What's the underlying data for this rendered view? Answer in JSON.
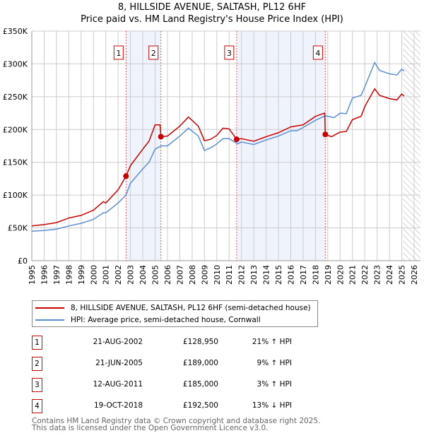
{
  "title_line1": "8, HILLSIDE AVENUE, SALTASH, PL12 6HF",
  "title_line2": "Price paid vs. HM Land Registry's House Price Index (HPI)",
  "chart_data": {
    "type": "line",
    "title": "8, HILLSIDE AVENUE, SALTASH, PL12 6HF — Price paid vs. HM Land Registry's House Price Index (HPI)",
    "xlim": [
      1995,
      2026
    ],
    "ylim": [
      0,
      350000
    ],
    "x_ticks": [
      "1995",
      "1996",
      "1997",
      "1998",
      "1999",
      "2000",
      "2001",
      "2002",
      "2003",
      "2004",
      "2005",
      "2006",
      "2007",
      "2008",
      "2009",
      "2010",
      "2011",
      "2012",
      "2013",
      "2014",
      "2015",
      "2016",
      "2017",
      "2018",
      "2019",
      "2020",
      "2021",
      "2022",
      "2023",
      "2024",
      "2025",
      "2026"
    ],
    "y_ticks": [
      {
        "v": 0,
        "label": "£0"
      },
      {
        "v": 50000,
        "label": "£50K"
      },
      {
        "v": 100000,
        "label": "£100K"
      },
      {
        "v": 150000,
        "label": "£150K"
      },
      {
        "v": 200000,
        "label": "£200K"
      },
      {
        "v": 250000,
        "label": "£250K"
      },
      {
        "v": 300000,
        "label": "£300K"
      },
      {
        "v": 350000,
        "label": "£350K"
      }
    ],
    "grid": true,
    "legend_placement": "below",
    "series": [
      {
        "name": "8, HILLSIDE AVENUE, SALTASH, PL12 6HF (semi-detached house)",
        "color": "#cc0000",
        "x": [
          1995,
          1996,
          1997,
          1998,
          1999,
          2000,
          2000.8,
          2001,
          2002,
          2002.64,
          2003,
          2004,
          2004.5,
          2005,
          2005.4,
          2005.47,
          2006,
          2007,
          2007.7,
          2008.5,
          2009,
          2009.5,
          2010,
          2010.5,
          2011,
          2011.61,
          2012,
          2013,
          2014,
          2015,
          2016,
          2017,
          2018,
          2018.75,
          2018.8,
          2019.3,
          2020,
          2020.5,
          2021,
          2021.7,
          2022,
          2022.8,
          2023.2,
          2024,
          2024.6,
          2025,
          2025.2
        ],
        "y": [
          53000,
          55000,
          58000,
          65000,
          69000,
          77000,
          90000,
          88000,
          108000,
          128950,
          145000,
          170000,
          182000,
          207000,
          207000,
          189000,
          190000,
          205000,
          219000,
          205000,
          183000,
          185000,
          191000,
          202000,
          201000,
          185000,
          186000,
          182000,
          189000,
          195000,
          204000,
          207000,
          220000,
          225000,
          192500,
          189000,
          196000,
          197000,
          215000,
          220000,
          235000,
          262000,
          252000,
          247000,
          245000,
          254000,
          251000
        ]
      },
      {
        "name": "HPI: Average price, semi-detached house, Cornwall",
        "color": "#5b8fd4",
        "x": [
          1995,
          1996,
          1997,
          1998,
          1999,
          2000,
          2000.8,
          2001,
          2002,
          2002.64,
          2003,
          2004,
          2004.5,
          2005,
          2005.5,
          2006,
          2007,
          2007.7,
          2008.5,
          2009,
          2009.5,
          2010,
          2010.5,
          2011,
          2011.7,
          2012,
          2013,
          2014,
          2015,
          2016,
          2016.5,
          2017,
          2018,
          2018.8,
          2019.5,
          2020,
          2020.5,
          2021,
          2021.7,
          2022,
          2022.8,
          2023.2,
          2024,
          2024.6,
          2025,
          2025.2
        ],
        "y": [
          45000,
          46000,
          48000,
          53000,
          57000,
          63000,
          73000,
          73000,
          88000,
          100000,
          118000,
          140000,
          150000,
          170000,
          175000,
          175000,
          190000,
          202000,
          190000,
          168000,
          172000,
          178000,
          186000,
          186000,
          178000,
          181000,
          177000,
          184000,
          190000,
          198000,
          198000,
          203000,
          214000,
          221000,
          218000,
          225000,
          224000,
          248000,
          252000,
          265000,
          302000,
          290000,
          285000,
          283000,
          292000,
          289000
        ]
      }
    ],
    "sales": [
      {
        "n": "1",
        "x": 2002.64,
        "y": 128950
      },
      {
        "n": "2",
        "x": 2005.47,
        "y": 189000
      },
      {
        "n": "3",
        "x": 2011.61,
        "y": 185000
      },
      {
        "n": "4",
        "x": 2018.8,
        "y": 192500
      }
    ],
    "shaded_ranges": [
      [
        2002.64,
        2005.47
      ],
      [
        2011.61,
        2018.8
      ]
    ],
    "forecast_hatch_from": 2025.1
  },
  "legend": [
    {
      "label": "8, HILLSIDE AVENUE, SALTASH, PL12 6HF (semi-detached house)",
      "color": "#cc0000"
    },
    {
      "label": "HPI: Average price, semi-detached house, Cornwall",
      "color": "#5b8fd4"
    }
  ],
  "table": [
    {
      "n": "1",
      "date": "21-AUG-2002",
      "price": "£128,950",
      "hpi": "21% ↑ HPI"
    },
    {
      "n": "2",
      "date": "21-JUN-2005",
      "price": "£189,000",
      "hpi": "9% ↑ HPI"
    },
    {
      "n": "3",
      "date": "12-AUG-2011",
      "price": "£185,000",
      "hpi": "3% ↑ HPI"
    },
    {
      "n": "4",
      "date": "19-OCT-2018",
      "price": "£192,500",
      "hpi": "13% ↓ HPI"
    }
  ],
  "footer_line1": "Contains HM Land Registry data © Crown copyright and database right 2025.",
  "footer_line2": "This data is licensed under the Open Government Licence v3.0."
}
